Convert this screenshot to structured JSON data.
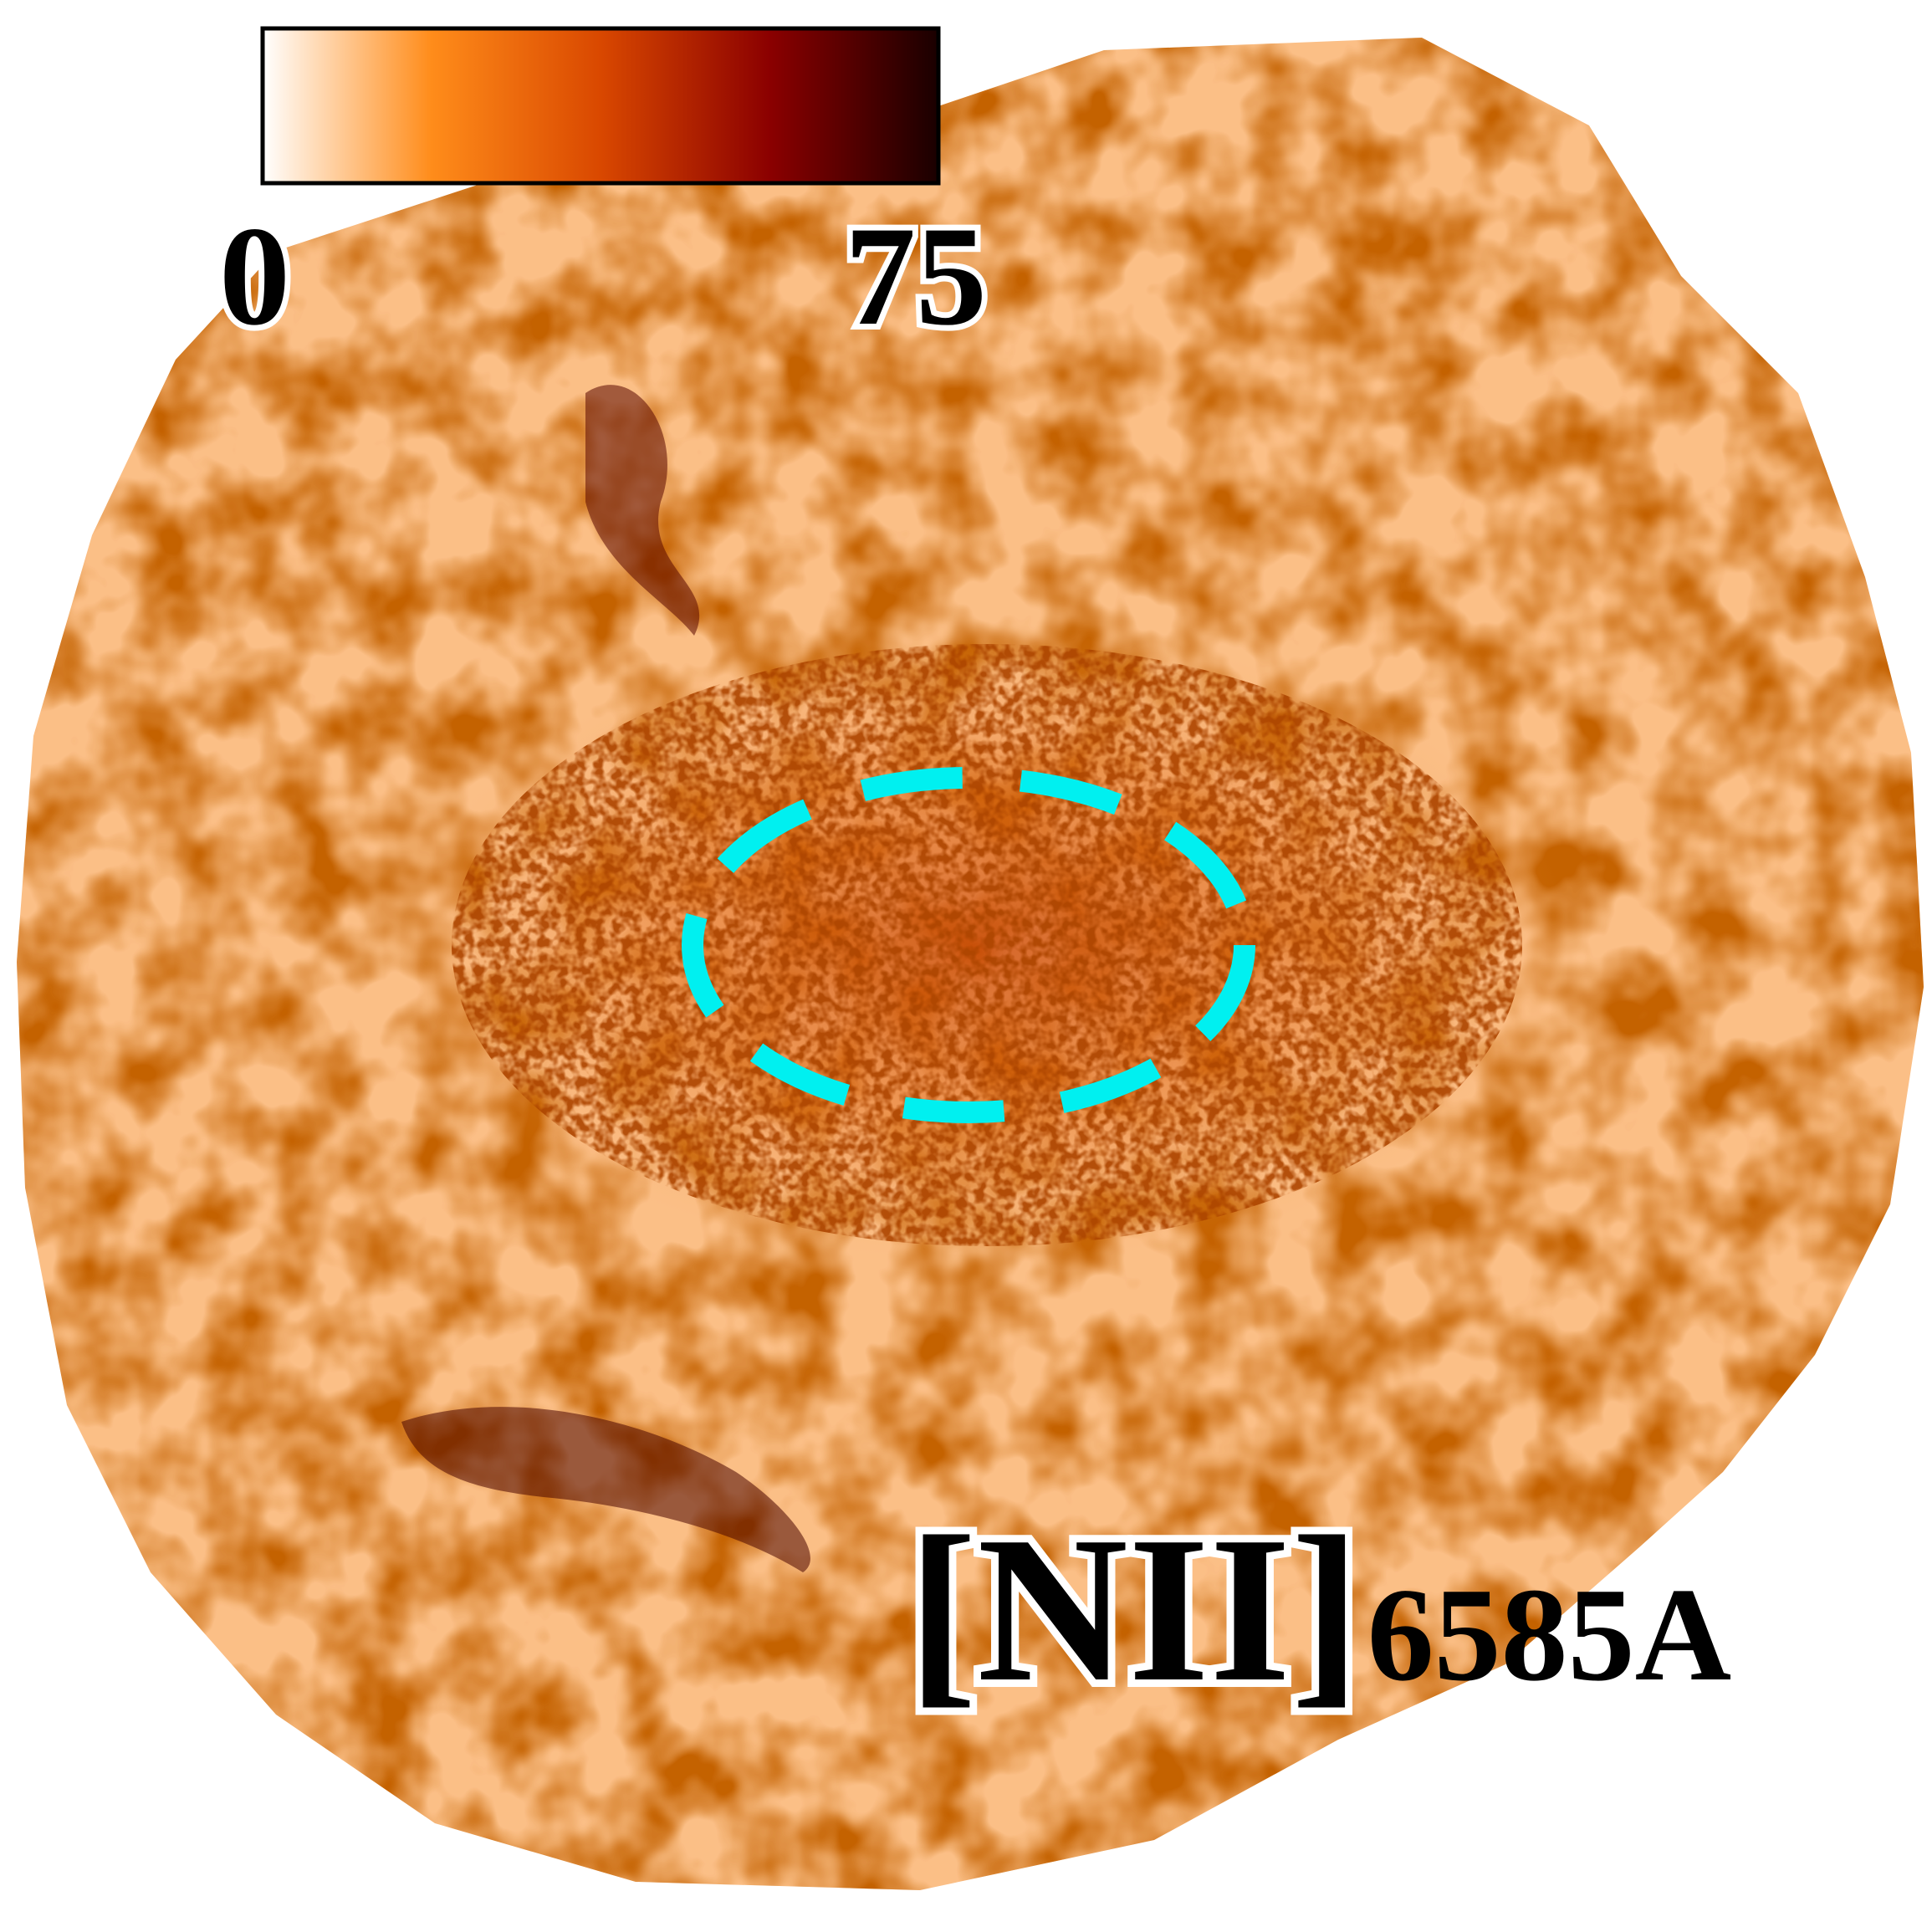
{
  "colorbar": {
    "min_label": "0",
    "max_label": "75",
    "colors": [
      "#ffffff",
      "#ff8c1a",
      "#d94800",
      "#8b0000",
      "#1a0000"
    ]
  },
  "line": {
    "name": "[NII]",
    "wavelength": "6585A"
  },
  "aperture": {
    "shape": "dashed-ellipse",
    "color": "#00f0f0"
  },
  "map_colors": {
    "background": "#fbbf86",
    "emission": "#e8731f",
    "peak": "#6b0a00"
  }
}
